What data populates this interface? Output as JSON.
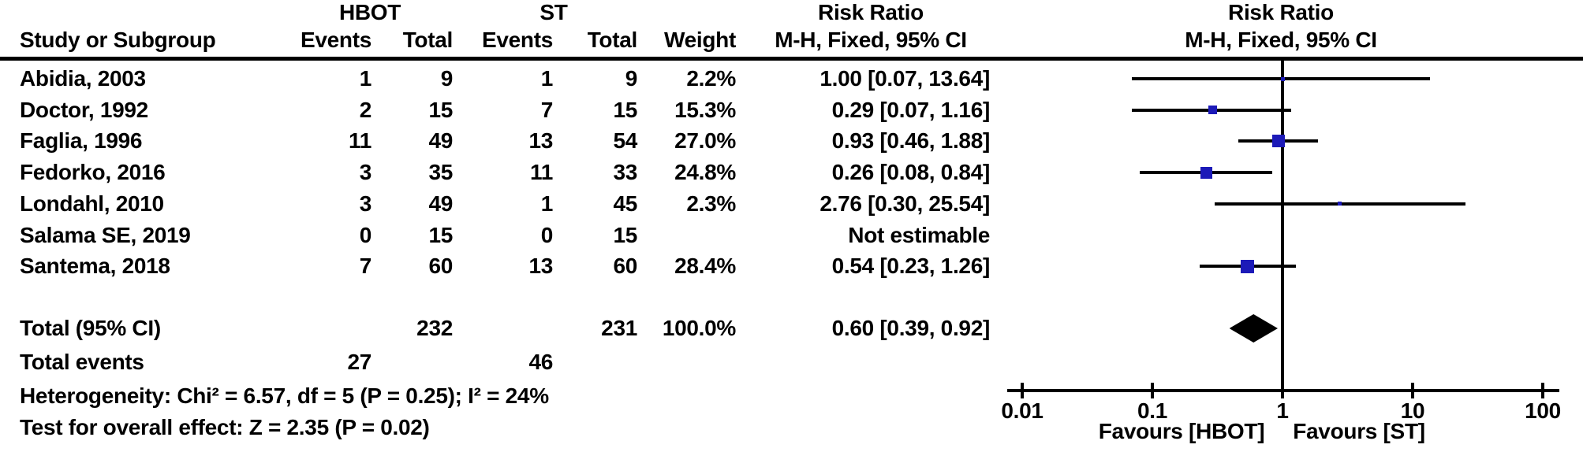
{
  "figure": {
    "group_headers": {
      "treatment": "HBOT",
      "control": "ST"
    },
    "effect_header": {
      "line1": "Risk Ratio",
      "line2": "M-H, Fixed, 95% CI"
    },
    "plot_header": {
      "line1": "Risk Ratio",
      "line2": "M-H, Fixed, 95% CI"
    },
    "columns": {
      "study": "Study or Subgroup",
      "events": "Events",
      "total": "Total",
      "weight": "Weight"
    },
    "totals": {
      "label": "Total (95% CI)",
      "hbot_total": "232",
      "st_total": "231",
      "weight": "100.0%",
      "rr_text": "0.60 [0.39, 0.92]"
    },
    "total_events": {
      "label": "Total events",
      "hbot": "27",
      "st": "46"
    },
    "heterogeneity": "Heterogeneity: Chi² = 6.57, df = 5 (P = 0.25); I² = 24%",
    "overall_effect": "Test for overall effect: Z = 2.35 (P = 0.02)"
  },
  "axis": {
    "tick_labels": [
      "0.01",
      "0.1",
      "1",
      "10",
      "100"
    ],
    "tick_values": [
      0.01,
      0.1,
      1,
      10,
      100
    ],
    "favours_left": "Favours [HBOT]",
    "favours_right": "Favours [ST]"
  },
  "colors": {
    "marker_blue": "#1c1ab8",
    "ink": "#000000"
  },
  "chart_data": {
    "type": "scatter",
    "variant": "forest-plot",
    "effect_measure": "Risk Ratio, M-H, Fixed, 95% CI",
    "x_scale": "log10",
    "x_ticks": [
      0.01,
      0.1,
      1,
      10,
      100
    ],
    "null_line": 1,
    "legend_left": "Favours [HBOT]",
    "legend_right": "Favours [ST]",
    "studies": [
      {
        "name": "Abidia, 2003",
        "hbot_events": "1",
        "hbot_total": "9",
        "st_events": "1",
        "st_total": "9",
        "weight": "2.2%",
        "weight_pct": 2.2,
        "rr_text": "1.00 [0.07, 13.64]",
        "rr": 1.0,
        "ci_low": 0.07,
        "ci_high": 13.64,
        "estimable": true
      },
      {
        "name": "Doctor, 1992",
        "hbot_events": "2",
        "hbot_total": "15",
        "st_events": "7",
        "st_total": "15",
        "weight": "15.3%",
        "weight_pct": 15.3,
        "rr_text": "0.29 [0.07, 1.16]",
        "rr": 0.29,
        "ci_low": 0.07,
        "ci_high": 1.16,
        "estimable": true
      },
      {
        "name": "Faglia, 1996",
        "hbot_events": "11",
        "hbot_total": "49",
        "st_events": "13",
        "st_total": "54",
        "weight": "27.0%",
        "weight_pct": 27.0,
        "rr_text": "0.93 [0.46, 1.88]",
        "rr": 0.93,
        "ci_low": 0.46,
        "ci_high": 1.88,
        "estimable": true
      },
      {
        "name": "Fedorko, 2016",
        "hbot_events": "3",
        "hbot_total": "35",
        "st_events": "11",
        "st_total": "33",
        "weight": "24.8%",
        "weight_pct": 24.8,
        "rr_text": "0.26 [0.08, 0.84]",
        "rr": 0.26,
        "ci_low": 0.08,
        "ci_high": 0.84,
        "estimable": true
      },
      {
        "name": "Londahl, 2010",
        "hbot_events": "3",
        "hbot_total": "49",
        "st_events": "1",
        "st_total": "45",
        "weight": "2.3%",
        "weight_pct": 2.3,
        "rr_text": "2.76 [0.30, 25.54]",
        "rr": 2.76,
        "ci_low": 0.3,
        "ci_high": 25.54,
        "estimable": true
      },
      {
        "name": "Salama SE, 2019",
        "hbot_events": "0",
        "hbot_total": "15",
        "st_events": "0",
        "st_total": "15",
        "weight": "",
        "weight_pct": 0,
        "rr_text": "Not estimable",
        "rr": null,
        "ci_low": null,
        "ci_high": null,
        "estimable": false
      },
      {
        "name": "Santema, 2018",
        "hbot_events": "7",
        "hbot_total": "60",
        "st_events": "13",
        "st_total": "60",
        "weight": "28.4%",
        "weight_pct": 28.4,
        "rr_text": "0.54 [0.23, 1.26]",
        "rr": 0.54,
        "ci_low": 0.23,
        "ci_high": 1.26,
        "estimable": true
      }
    ],
    "pooled": {
      "label": "Total (95% CI)",
      "rr": 0.6,
      "ci_low": 0.39,
      "ci_high": 0.92,
      "weight_pct": 100.0
    },
    "heterogeneity": {
      "chi2": 6.57,
      "df": 5,
      "p": 0.25,
      "i2_pct": 24
    },
    "overall_effect": {
      "z": 2.35,
      "p": 0.02
    }
  }
}
